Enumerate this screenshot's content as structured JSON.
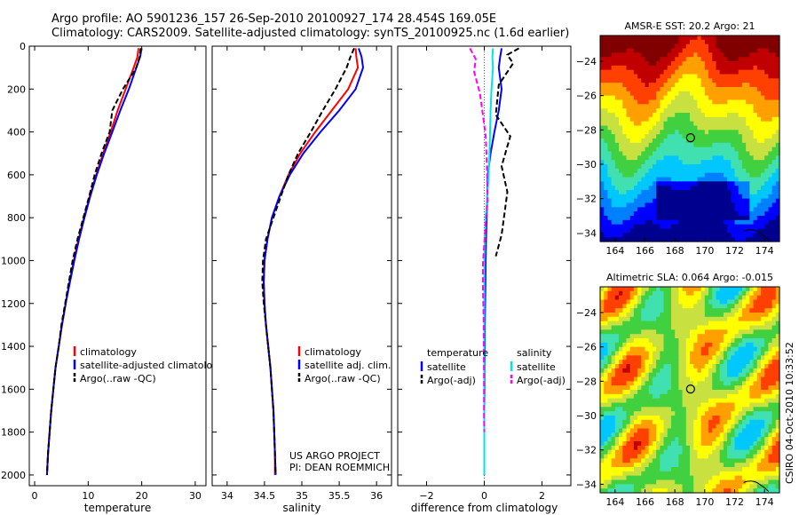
{
  "header": {
    "line1": "Argo profile: AO 5901236_157 26-Sep-2010 20100927_174 28.454S 169.05E",
    "line2": "Climatology: CARS2009. Satellite-adjusted climatology: synTS_20100925.nc (1.6d earlier)"
  },
  "side_label": "CSIRO 04-Oct-2010 10:33:52",
  "chart_data": [
    {
      "type": "line",
      "id": "temperature",
      "xlabel": "temperature",
      "ylabel": "",
      "xlim": [
        -1,
        32
      ],
      "ylim": [
        2050,
        0
      ],
      "xticks": [
        0,
        10,
        20,
        30
      ],
      "yticks": [
        0,
        200,
        400,
        600,
        800,
        1000,
        1200,
        1400,
        1600,
        1800,
        2000
      ],
      "legend": [
        "climatology",
        "satellite-adjusted climatology",
        "Argo(..raw -QC)"
      ],
      "legend_position": "lower-middle",
      "series": [
        {
          "name": "climatology",
          "color": "#ff0000",
          "dash": "solid",
          "x": [
            19.4,
            19.2,
            18.5,
            17.0,
            15.5,
            14.2,
            12.8,
            11.5,
            10.3,
            9.2,
            8.2,
            7.3,
            6.5,
            5.8,
            5.1,
            4.5,
            3.9,
            3.5,
            3.1,
            2.8,
            2.5,
            2.3
          ],
          "y": [
            10,
            50,
            100,
            200,
            300,
            400,
            500,
            600,
            700,
            800,
            900,
            1000,
            1100,
            1200,
            1300,
            1400,
            1500,
            1600,
            1700,
            1800,
            1900,
            2000
          ]
        },
        {
          "name": "satellite-adjusted climatology",
          "color": "#0000ff",
          "dash": "solid",
          "x": [
            20.0,
            19.7,
            19.0,
            17.6,
            16.0,
            14.5,
            13.0,
            11.6,
            10.4,
            9.3,
            8.3,
            7.4,
            6.6,
            5.8,
            5.1,
            4.5,
            3.9,
            3.5,
            3.1,
            2.8,
            2.5,
            2.3
          ],
          "y": [
            10,
            50,
            100,
            200,
            300,
            400,
            500,
            600,
            700,
            800,
            900,
            1000,
            1100,
            1200,
            1300,
            1400,
            1500,
            1600,
            1700,
            1800,
            1900,
            2000
          ]
        },
        {
          "name": "Argo(..raw -QC)",
          "color": "#000000",
          "dash": "dashed",
          "x": [
            19.8,
            19.6,
            19.0,
            16.5,
            14.5,
            14.0,
            12.5,
            11.2,
            10.2,
            9.1,
            8.0,
            7.1,
            6.4,
            5.7,
            5.0,
            4.5,
            3.9,
            3.5,
            3.1,
            2.8,
            2.5,
            2.3
          ],
          "y": [
            10,
            50,
            100,
            200,
            300,
            400,
            500,
            600,
            700,
            800,
            900,
            1000,
            1100,
            1200,
            1300,
            1400,
            1500,
            1600,
            1700,
            1800,
            1900,
            2000
          ]
        }
      ]
    },
    {
      "type": "line",
      "id": "salinity",
      "xlabel": "salinity",
      "xlim": [
        33.8,
        36.2
      ],
      "ylim": [
        2050,
        0
      ],
      "xticks": [
        34,
        34.5,
        35,
        35.5,
        36
      ],
      "legend": [
        "climatology",
        "satellite adj. clim.",
        "Argo(..raw -QC)"
      ],
      "legend_position": "lower-right",
      "annotation_lines": [
        "US ARGO PROJECT",
        "PI: DEAN ROEMMICH"
      ],
      "series": [
        {
          "name": "climatology",
          "color": "#ff0000",
          "dash": "solid",
          "x": [
            35.72,
            35.73,
            35.75,
            35.62,
            35.4,
            35.18,
            34.98,
            34.82,
            34.7,
            34.6,
            34.54,
            34.5,
            34.49,
            34.5,
            34.52,
            34.55,
            34.58,
            34.6,
            34.62,
            34.63,
            34.64,
            34.64
          ],
          "y": [
            10,
            50,
            100,
            200,
            300,
            400,
            500,
            600,
            700,
            800,
            900,
            1000,
            1100,
            1200,
            1300,
            1400,
            1500,
            1600,
            1700,
            1800,
            1900,
            2000
          ]
        },
        {
          "name": "satellite adj. clim.",
          "color": "#0000ff",
          "dash": "solid",
          "x": [
            35.76,
            35.8,
            35.82,
            35.72,
            35.5,
            35.25,
            35.02,
            34.84,
            34.7,
            34.6,
            34.54,
            34.5,
            34.49,
            34.5,
            34.52,
            34.55,
            34.58,
            34.6,
            34.62,
            34.63,
            34.64,
            34.65
          ],
          "y": [
            10,
            50,
            100,
            200,
            300,
            400,
            500,
            600,
            700,
            800,
            900,
            1000,
            1100,
            1200,
            1300,
            1400,
            1500,
            1600,
            1700,
            1800,
            1900,
            2000
          ]
        },
        {
          "name": "Argo(..raw -QC)",
          "color": "#000000",
          "dash": "dashed",
          "x": [
            35.7,
            35.65,
            35.6,
            35.45,
            35.28,
            35.12,
            34.95,
            34.82,
            34.72,
            34.62,
            34.52,
            34.48,
            34.47,
            34.49,
            34.52,
            34.55,
            34.58,
            34.6,
            34.62,
            34.63,
            34.64,
            34.65
          ],
          "y": [
            10,
            50,
            100,
            200,
            300,
            400,
            500,
            600,
            700,
            800,
            900,
            1000,
            1100,
            1200,
            1300,
            1400,
            1500,
            1600,
            1700,
            1800,
            1900,
            2000
          ]
        }
      ]
    },
    {
      "type": "line",
      "id": "difference",
      "xlabel": "difference from climatology",
      "xlim": [
        -3,
        3
      ],
      "ylim": [
        2050,
        0
      ],
      "xticks": [
        -2,
        0,
        2
      ],
      "legend_headers": [
        "temperature",
        "salinity"
      ],
      "legend": [
        "satellite",
        "Argo(-adj)",
        "satellite",
        "Argo(-adj)"
      ],
      "legend_position": "lower-middle",
      "series": [
        {
          "name": "temperature satellite",
          "color": "#0000ff",
          "dash": "solid",
          "x": [
            0.6,
            0.55,
            0.5,
            0.6,
            0.5,
            0.35,
            0.22,
            0.12,
            0.1,
            0.08,
            0.06,
            0.05,
            0.04,
            0.03,
            0.02,
            0.02,
            0.01,
            0.01,
            0.0,
            0.0,
            0.0,
            0.0
          ],
          "y": [
            10,
            50,
            100,
            200,
            300,
            400,
            500,
            600,
            700,
            800,
            900,
            1000,
            1100,
            1200,
            1300,
            1400,
            1500,
            1600,
            1700,
            1800,
            1900,
            2000
          ]
        },
        {
          "name": "temperature Argo(-adj)",
          "color": "#000000",
          "dash": "dashed",
          "x": [
            1.2,
            0.8,
            1.0,
            0.5,
            0.4,
            0.9,
            0.6,
            0.8,
            0.7,
            0.6,
            0.4
          ],
          "y": [
            10,
            40,
            80,
            180,
            320,
            420,
            560,
            680,
            780,
            880,
            980
          ]
        },
        {
          "name": "salinity satellite",
          "color": "#00e5e5",
          "dash": "solid",
          "x": [
            0.3,
            0.28,
            0.3,
            0.25,
            0.22,
            0.2,
            0.18,
            0.15,
            0.1,
            0.05,
            0.02,
            0.0,
            0.0,
            0.0,
            0.0,
            0.0,
            0.0,
            0.0,
            0.0,
            0.0,
            0.0,
            0.0
          ],
          "y": [
            10,
            50,
            100,
            200,
            300,
            400,
            500,
            600,
            700,
            800,
            900,
            1000,
            1100,
            1200,
            1300,
            1400,
            1500,
            1600,
            1700,
            1800,
            1900,
            2000
          ]
        },
        {
          "name": "salinity Argo(-adj)",
          "color": "#ff00ff",
          "dash": "dashed",
          "x": [
            -0.5,
            -0.3,
            -0.35,
            -0.15,
            -0.05,
            0.05,
            0.08,
            0.1,
            0.12,
            0.05,
            0.0,
            -0.05,
            -0.05,
            -0.03,
            -0.02,
            -0.02,
            -0.01,
            -0.01,
            -0.01,
            0.0
          ],
          "y": [
            10,
            60,
            120,
            220,
            320,
            420,
            520,
            620,
            720,
            820,
            920,
            1020,
            1120,
            1220,
            1320,
            1420,
            1520,
            1620,
            1720,
            1800
          ]
        }
      ]
    },
    {
      "type": "heatmap",
      "id": "sst-map",
      "title": "AMSR-E SST: 20.2 Argo: 21",
      "xlim": [
        163,
        175
      ],
      "ylim": [
        -34.5,
        -22.5
      ],
      "xticks": [
        164,
        166,
        168,
        170,
        172,
        174
      ],
      "yticks": [
        -24,
        -26,
        -28,
        -30,
        -32,
        -34
      ],
      "marker": {
        "lon": 169.05,
        "lat": -28.454
      },
      "colormap": [
        "#00008f",
        "#0000ff",
        "#0080ff",
        "#00c8ff",
        "#40e0b0",
        "#40d040",
        "#c8e040",
        "#ffff00",
        "#ffa000",
        "#ff4000",
        "#c00000",
        "#800000"
      ]
    },
    {
      "type": "heatmap",
      "id": "sla-map",
      "title": "Altimetric SLA: 0.064 Argo: -0.015",
      "xlim": [
        163,
        175
      ],
      "ylim": [
        -34.5,
        -22.5
      ],
      "xticks": [
        164,
        166,
        168,
        170,
        172,
        174
      ],
      "yticks": [
        -24,
        -26,
        -28,
        -30,
        -32,
        -34
      ],
      "marker": {
        "lon": 169.05,
        "lat": -28.454
      }
    }
  ]
}
